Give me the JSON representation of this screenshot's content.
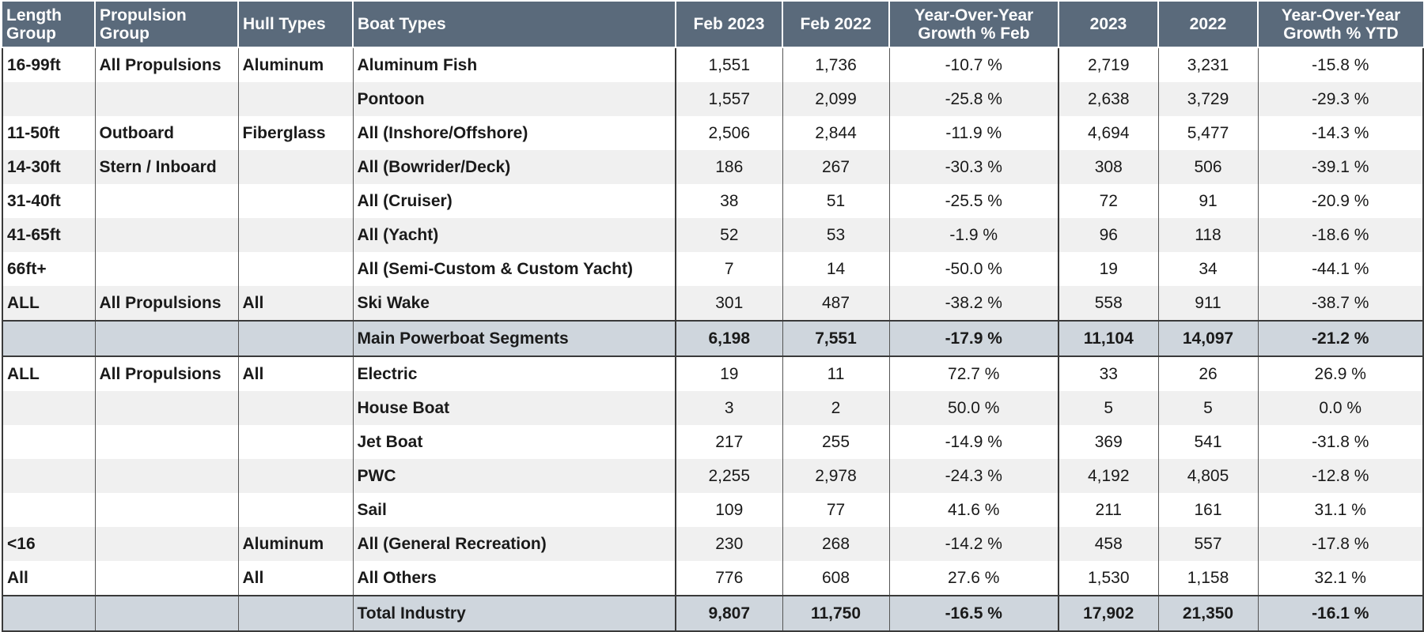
{
  "headers": [
    "Length Group",
    "Propulsion Group",
    "Hull Types",
    "Boat Types",
    "Feb 2023",
    "Feb 2022",
    "Year-Over-Year Growth % Feb",
    "2023",
    "2022",
    "Year-Over-Year Growth % YTD"
  ],
  "rows": [
    {
      "type": "data",
      "cells": [
        "16-99ft",
        "All Propulsions",
        "Aluminum",
        "Aluminum Fish",
        "1,551",
        "1,736",
        "-10.7 %",
        "2,719",
        "3,231",
        "-15.8 %"
      ]
    },
    {
      "type": "data",
      "cells": [
        "",
        "",
        "",
        "Pontoon",
        "1,557",
        "2,099",
        "-25.8 %",
        "2,638",
        "3,729",
        "-29.3 %"
      ]
    },
    {
      "type": "data",
      "cells": [
        "11-50ft",
        "Outboard",
        "Fiberglass",
        "All (Inshore/Offshore)",
        "2,506",
        "2,844",
        "-11.9 %",
        "4,694",
        "5,477",
        "-14.3 %"
      ]
    },
    {
      "type": "data",
      "cells": [
        "14-30ft",
        "Stern / Inboard",
        "",
        "All (Bowrider/Deck)",
        "186",
        "267",
        "-30.3 %",
        "308",
        "506",
        "-39.1 %"
      ]
    },
    {
      "type": "data",
      "cells": [
        "31-40ft",
        "",
        "",
        "All (Cruiser)",
        "38",
        "51",
        "-25.5 %",
        "72",
        "91",
        "-20.9 %"
      ]
    },
    {
      "type": "data",
      "cells": [
        "41-65ft",
        "",
        "",
        "All (Yacht)",
        "52",
        "53",
        "-1.9 %",
        "96",
        "118",
        "-18.6 %"
      ]
    },
    {
      "type": "data",
      "cells": [
        "66ft+",
        "",
        "",
        "All (Semi-Custom & Custom Yacht)",
        "7",
        "14",
        "-50.0 %",
        "19",
        "34",
        "-44.1 %"
      ]
    },
    {
      "type": "data",
      "cells": [
        "ALL",
        "All Propulsions",
        "All",
        "Ski Wake",
        "301",
        "487",
        "-38.2 %",
        "558",
        "911",
        "-38.7 %"
      ]
    },
    {
      "type": "summary",
      "cells": [
        "",
        "",
        "",
        "Main Powerboat Segments",
        "6,198",
        "7,551",
        "-17.9 %",
        "11,104",
        "14,097",
        "-21.2 %"
      ]
    },
    {
      "type": "data",
      "cells": [
        "ALL",
        "All Propulsions",
        "All",
        "Electric",
        "19",
        "11",
        "72.7 %",
        "33",
        "26",
        "26.9 %"
      ]
    },
    {
      "type": "data",
      "cells": [
        "",
        "",
        "",
        "House Boat",
        "3",
        "2",
        "50.0 %",
        "5",
        "5",
        "0.0 %"
      ]
    },
    {
      "type": "data",
      "cells": [
        "",
        "",
        "",
        "Jet Boat",
        "217",
        "255",
        "-14.9 %",
        "369",
        "541",
        "-31.8 %"
      ]
    },
    {
      "type": "data",
      "cells": [
        "",
        "",
        "",
        "PWC",
        "2,255",
        "2,978",
        "-24.3 %",
        "4,192",
        "4,805",
        "-12.8 %"
      ]
    },
    {
      "type": "data",
      "cells": [
        "",
        "",
        "",
        "Sail",
        "109",
        "77",
        "41.6 %",
        "211",
        "161",
        "31.1 %"
      ]
    },
    {
      "type": "data",
      "cells": [
        "<16",
        "",
        "Aluminum",
        "All (General Recreation)",
        "230",
        "268",
        "-14.2 %",
        "458",
        "557",
        "-17.8 %"
      ]
    },
    {
      "type": "data",
      "cells": [
        "All",
        "",
        "All",
        "All Others",
        "776",
        "608",
        "27.6 %",
        "1,530",
        "1,158",
        "32.1 %"
      ]
    },
    {
      "type": "summary",
      "cells": [
        "",
        "",
        "",
        "Total Industry",
        "9,807",
        "11,750",
        "-16.5 %",
        "17,902",
        "21,350",
        "-16.1 %"
      ]
    }
  ]
}
